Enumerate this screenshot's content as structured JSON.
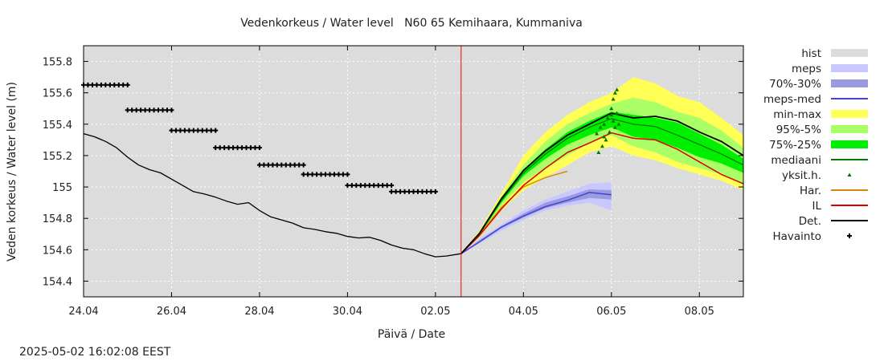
{
  "chart_data": {
    "type": "line",
    "title": "Vedenkorkeus / Water level   N60 65 Kemihaara, Kummaniva",
    "xlabel": "Päivä / Date",
    "ylabel": "Veden korkeus / Water level (m)",
    "timestamp": "2025-05-02 16:02:08 EEST",
    "x_range": [
      "2025-04-24",
      "2025-05-09"
    ],
    "ylim": [
      154.3,
      155.9
    ],
    "grid": true,
    "legend_position": "right",
    "forecast_start": "2025-05-02T14:00",
    "x_ticks": [
      {
        "date": "2025-04-24",
        "label": "24.04"
      },
      {
        "date": "2025-04-26",
        "label": "26.04"
      },
      {
        "date": "2025-04-28",
        "label": "28.04"
      },
      {
        "date": "2025-04-30",
        "label": "30.04"
      },
      {
        "date": "2025-05-02",
        "label": "02.05"
      },
      {
        "date": "2025-05-04",
        "label": "04.05"
      },
      {
        "date": "2025-05-06",
        "label": "06.05"
      },
      {
        "date": "2025-05-08",
        "label": "08.05"
      }
    ],
    "y_ticks": [
      {
        "value": 154.4,
        "label": "154.4"
      },
      {
        "value": 154.6,
        "label": "154.6"
      },
      {
        "value": 154.8,
        "label": "154.8"
      },
      {
        "value": 155.0,
        "label": "155"
      },
      {
        "value": 155.2,
        "label": "155.2"
      },
      {
        "value": 155.4,
        "label": "155.4"
      },
      {
        "value": 155.6,
        "label": "155.6"
      },
      {
        "value": 155.8,
        "label": "155.8"
      }
    ],
    "legend": [
      {
        "label": "hist",
        "kind": "band",
        "color": "#dcdcdc"
      },
      {
        "label": "meps",
        "kind": "band",
        "color": "#c8c8ff"
      },
      {
        "label": "70%-30%",
        "kind": "band",
        "color": "#9a9ae0"
      },
      {
        "label": "meps-med",
        "kind": "line",
        "color": "#4444cc"
      },
      {
        "label": "min-max",
        "kind": "band",
        "color": "#ffff55"
      },
      {
        "label": "95%-5%",
        "kind": "band",
        "color": "#aaff66"
      },
      {
        "label": "75%-25%",
        "kind": "band",
        "color": "#00ee00"
      },
      {
        "label": "mediaani",
        "kind": "line",
        "color": "#007700"
      },
      {
        "label": "yksit.h.",
        "kind": "triangle",
        "color": "#007700"
      },
      {
        "label": "Har.",
        "kind": "line",
        "color": "#dd8800"
      },
      {
        "label": "IL",
        "kind": "line",
        "color": "#dd0000"
      },
      {
        "label": "Det.",
        "kind": "line",
        "color": "#000000"
      },
      {
        "label": "Havainto",
        "kind": "plus",
        "color": "#000000"
      }
    ],
    "series": {
      "havainto": [
        {
          "date": "2025-04-24",
          "value": 155.65
        },
        {
          "date": "2025-04-25",
          "value": 155.49
        },
        {
          "date": "2025-04-26",
          "value": 155.36
        },
        {
          "date": "2025-04-27",
          "value": 155.25
        },
        {
          "date": "2025-04-28",
          "value": 155.14
        },
        {
          "date": "2025-04-29",
          "value": 155.08
        },
        {
          "date": "2025-04-30",
          "value": 155.01
        },
        {
          "date": "2025-05-01",
          "value": 154.97
        }
      ],
      "det_observed": [
        [
          "2025-04-24T00:00",
          155.34
        ],
        [
          "2025-04-24T06:00",
          155.32
        ],
        [
          "2025-04-24T12:00",
          155.29
        ],
        [
          "2025-04-24T18:00",
          155.25
        ],
        [
          "2025-04-25T00:00",
          155.19
        ],
        [
          "2025-04-25T06:00",
          155.14
        ],
        [
          "2025-04-25T12:00",
          155.11
        ],
        [
          "2025-04-25T18:00",
          155.09
        ],
        [
          "2025-04-26T00:00",
          155.05
        ],
        [
          "2025-04-26T06:00",
          155.01
        ],
        [
          "2025-04-26T12:00",
          154.97
        ],
        [
          "2025-04-26T18:00",
          154.955
        ],
        [
          "2025-04-27T00:00",
          154.935
        ],
        [
          "2025-04-27T06:00",
          154.91
        ],
        [
          "2025-04-27T12:00",
          154.89
        ],
        [
          "2025-04-27T18:00",
          154.9
        ],
        [
          "2025-04-28T00:00",
          154.85
        ],
        [
          "2025-04-28T06:00",
          154.81
        ],
        [
          "2025-04-28T12:00",
          154.79
        ],
        [
          "2025-04-28T18:00",
          154.77
        ],
        [
          "2025-04-29T00:00",
          154.74
        ],
        [
          "2025-04-29T06:00",
          154.73
        ],
        [
          "2025-04-29T12:00",
          154.715
        ],
        [
          "2025-04-29T18:00",
          154.705
        ],
        [
          "2025-04-30T00:00",
          154.685
        ],
        [
          "2025-04-30T06:00",
          154.675
        ],
        [
          "2025-04-30T12:00",
          154.68
        ],
        [
          "2025-04-30T18:00",
          154.66
        ],
        [
          "2025-05-01T00:00",
          154.63
        ],
        [
          "2025-05-01T06:00",
          154.61
        ],
        [
          "2025-05-01T12:00",
          154.6
        ],
        [
          "2025-05-01T18:00",
          154.575
        ],
        [
          "2025-05-02T00:00",
          154.555
        ],
        [
          "2025-05-02T06:00",
          154.56
        ],
        [
          "2025-05-02T14:00",
          154.575
        ]
      ],
      "forecast_x": [
        "2025-05-02T14:00",
        "2025-05-03T00:00",
        "2025-05-03T12:00",
        "2025-05-04T00:00",
        "2025-05-04T12:00",
        "2025-05-05T00:00",
        "2025-05-05T12:00",
        "2025-05-06T00:00",
        "2025-05-06T12:00",
        "2025-05-07T00:00",
        "2025-05-07T12:00",
        "2025-05-08T00:00",
        "2025-05-08T12:00",
        "2025-05-09T00:00"
      ],
      "min_max": {
        "low": [
          154.575,
          154.68,
          154.85,
          154.98,
          155.06,
          155.14,
          155.22,
          155.26,
          155.2,
          155.17,
          155.12,
          155.08,
          155.04,
          154.98
        ],
        "high": [
          154.575,
          154.72,
          154.96,
          155.2,
          155.35,
          155.46,
          155.54,
          155.6,
          155.7,
          155.66,
          155.58,
          155.54,
          155.44,
          155.33
        ]
      },
      "p95_5": {
        "low": [
          154.575,
          154.69,
          154.88,
          155.03,
          155.12,
          155.2,
          155.28,
          155.33,
          155.26,
          155.22,
          155.16,
          155.12,
          155.08,
          155.02
        ],
        "high": [
          154.575,
          154.71,
          154.94,
          155.14,
          155.29,
          155.4,
          155.47,
          155.53,
          155.57,
          155.54,
          155.48,
          155.44,
          155.36,
          155.25
        ]
      },
      "p75_25": {
        "low": [
          154.575,
          154.695,
          154.9,
          155.07,
          155.18,
          155.27,
          155.33,
          155.38,
          155.32,
          155.3,
          155.25,
          155.19,
          155.15,
          155.09
        ],
        "high": [
          154.575,
          154.705,
          154.93,
          155.11,
          155.24,
          155.35,
          155.42,
          155.48,
          155.46,
          155.44,
          155.41,
          155.34,
          155.27,
          155.18
        ]
      },
      "mediaani": [
        154.575,
        154.7,
        154.915,
        155.09,
        155.21,
        155.31,
        155.38,
        155.435,
        155.4,
        155.385,
        155.33,
        155.27,
        155.21,
        155.14
      ],
      "det": [
        154.575,
        154.705,
        154.925,
        155.105,
        155.23,
        155.33,
        155.4,
        155.47,
        155.44,
        155.45,
        155.42,
        155.35,
        155.29,
        155.2
      ],
      "il": [
        154.575,
        154.69,
        154.86,
        155.01,
        155.12,
        155.22,
        155.28,
        155.345,
        155.31,
        155.3,
        155.24,
        155.16,
        155.08,
        155.02
      ],
      "har_x": [
        "2025-05-02T14:00",
        "2025-05-03T00:00",
        "2025-05-03T12:00",
        "2025-05-04T00:00",
        "2025-05-04T12:00",
        "2025-05-05T00:00"
      ],
      "har": [
        154.575,
        154.695,
        154.87,
        155.0,
        155.06,
        155.1
      ],
      "meps_x": [
        "2025-05-02T14:00",
        "2025-05-03T00:00",
        "2025-05-03T12:00",
        "2025-05-04T00:00",
        "2025-05-04T12:00",
        "2025-05-05T00:00",
        "2025-05-05T12:00",
        "2025-05-06T00:00"
      ],
      "meps": {
        "low": [
          154.575,
          154.64,
          154.72,
          154.79,
          154.85,
          154.88,
          154.9,
          154.85
        ],
        "high": [
          154.575,
          154.67,
          154.76,
          154.85,
          154.92,
          154.97,
          155.02,
          155.03
        ]
      },
      "meps_70_30": {
        "low": [
          154.575,
          154.645,
          154.735,
          154.805,
          154.865,
          154.9,
          154.93,
          154.92
        ],
        "high": [
          154.575,
          154.66,
          154.75,
          154.83,
          154.9,
          154.94,
          154.985,
          154.98
        ]
      },
      "meps_med": [
        154.575,
        154.65,
        154.745,
        154.815,
        154.875,
        154.915,
        154.965,
        154.95
      ],
      "yksit": [
        [
          "2025-05-05T18:00",
          155.38
        ],
        [
          "2025-05-05T20:00",
          155.4
        ],
        [
          "2025-05-05T16:00",
          155.34
        ],
        [
          "2025-05-05T17:00",
          155.22
        ],
        [
          "2025-05-05T19:00",
          155.26
        ],
        [
          "2025-05-05T21:00",
          155.3
        ],
        [
          "2025-05-05T22:00",
          155.44
        ],
        [
          "2025-05-06T00:00",
          155.46
        ],
        [
          "2025-05-06T00:00",
          155.5
        ],
        [
          "2025-05-06T01:00",
          155.56
        ],
        [
          "2025-05-06T02:00",
          155.6
        ],
        [
          "2025-05-06T03:00",
          155.62
        ],
        [
          "2025-05-06T01:00",
          155.42
        ],
        [
          "2025-05-06T02:00",
          155.38
        ],
        [
          "2025-05-06T04:00",
          155.4
        ],
        [
          "2025-05-05T23:00",
          155.35
        ],
        [
          "2025-05-06T03:00",
          155.47
        ],
        [
          "2025-05-05T20:00",
          155.32
        ]
      ]
    }
  }
}
